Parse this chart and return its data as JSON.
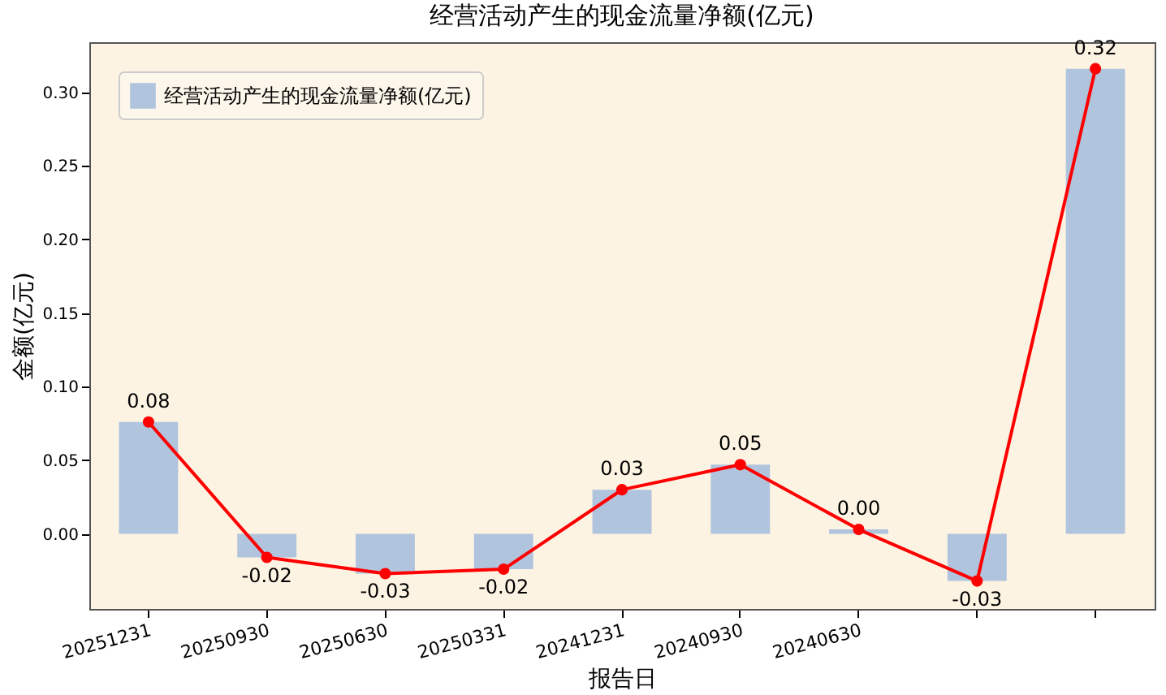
{
  "chart_data": {
    "type": "bar",
    "title": "经营活动产生的现金流量净额(亿元)",
    "xlabel": "报告日",
    "ylabel": "金额(亿元)",
    "categories": [
      "20251231",
      "20250930",
      "20250630",
      "20250331",
      "20241231",
      "20240930",
      "20240630",
      null,
      null
    ],
    "series": [
      {
        "name": "经营活动产生的现金流量净额(亿元)",
        "color": "#b0c4de",
        "values": [
          0.076,
          -0.016,
          -0.027,
          -0.024,
          0.03,
          0.047,
          0.003,
          -0.032,
          0.316
        ],
        "value_labels": [
          "0.08",
          "-0.02",
          "-0.03",
          "-0.02",
          "0.03",
          "0.05",
          "0.00",
          "-0.03",
          "0.32"
        ]
      },
      {
        "type": "line",
        "color": "#ff0000",
        "marker": "circle",
        "values": [
          0.076,
          -0.016,
          -0.027,
          -0.024,
          0.03,
          0.047,
          0.003,
          -0.032,
          0.316
        ]
      }
    ],
    "ylim": [
      -0.051,
      0.334
    ],
    "yticks": [
      {
        "value": 0,
        "label": "0.00"
      },
      {
        "value": 0.05,
        "label": "0.05"
      },
      {
        "value": 0.1,
        "label": "0.10"
      },
      {
        "value": 0.15,
        "label": "0.15"
      },
      {
        "value": 0.2,
        "label": "0.20"
      },
      {
        "value": 0.25,
        "label": "0.25"
      },
      {
        "value": 0.3,
        "label": "0.30"
      }
    ],
    "legend": "top left"
  }
}
